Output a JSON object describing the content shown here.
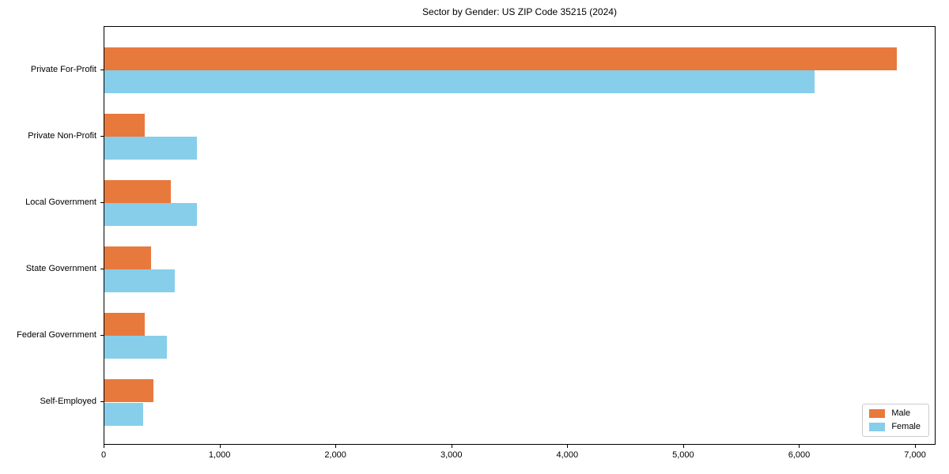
{
  "chart_data": {
    "type": "bar",
    "orientation": "horizontal",
    "title": "Sector by Gender: US ZIP Code 35215 (2024)",
    "categories": [
      "Private For-Profit",
      "Private Non-Profit",
      "Local Government",
      "State Government",
      "Federal Government",
      "Self-Employed"
    ],
    "series": [
      {
        "name": "Male",
        "color": "#e8793d",
        "values": [
          6850,
          350,
          575,
          405,
          350,
          425
        ]
      },
      {
        "name": "Female",
        "color": "#87ceeb",
        "values": [
          6140,
          800,
          800,
          610,
          540,
          335
        ]
      }
    ],
    "xlabel": "",
    "ylabel": "",
    "xlim": [
      0,
      7177
    ],
    "xticks": [
      0,
      1000,
      2000,
      3000,
      4000,
      5000,
      6000,
      7000
    ],
    "xtick_labels": [
      "0",
      "1,000",
      "2,000",
      "3,000",
      "4,000",
      "5,000",
      "6,000",
      "7,000"
    ],
    "grid": false,
    "legend_position": "lower right"
  }
}
